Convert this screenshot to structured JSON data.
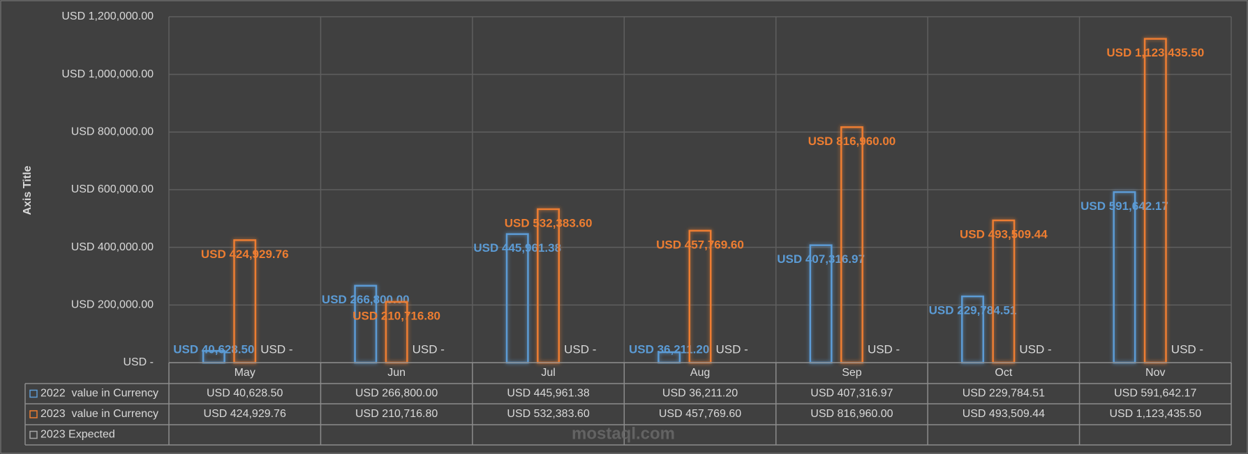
{
  "chart_data": {
    "type": "bar",
    "y_axis_title": "Axis Title",
    "categories": [
      "May",
      "Jun",
      "Jul",
      "Aug",
      "Sep",
      "Oct",
      "Nov"
    ],
    "series": [
      {
        "name": "2022  value in Currency",
        "color": "#5b9bd5",
        "values": [
          40628.5,
          266800.0,
          445961.38,
          36211.2,
          407316.97,
          229784.51,
          591642.17
        ],
        "value_labels": [
          "USD 40,628.50",
          "USD 266,800.00",
          "USD 445,961.38",
          "USD 36,211.20",
          "USD 407,316.97",
          "USD 229,784.51",
          "USD 591,642.17"
        ]
      },
      {
        "name": "2023  value in Currency",
        "color": "#ed7d31",
        "values": [
          424929.76,
          210716.8,
          532383.6,
          457769.6,
          816960.0,
          493509.44,
          1123435.5
        ],
        "value_labels": [
          "USD 424,929.76",
          "USD 210,716.80",
          "USD 532,383.60",
          "USD 457,769.60",
          "USD 816,960.00",
          "USD 493,509.44",
          "USD 1,123,435.50"
        ]
      },
      {
        "name": "2023 Expected",
        "color": "#a5a5a5",
        "values": [
          0,
          0,
          0,
          0,
          0,
          0,
          0
        ],
        "value_labels": [
          "USD -",
          "USD -",
          "USD -",
          "USD -",
          "USD -",
          "USD -",
          "USD -"
        ]
      }
    ],
    "ylim": [
      0,
      1200000
    ],
    "yticks": [
      {
        "value": 0,
        "label": "USD -"
      },
      {
        "value": 200000,
        "label": "USD 200,000.00"
      },
      {
        "value": 400000,
        "label": "USD 400,000.00"
      },
      {
        "value": 600000,
        "label": "USD 600,000.00"
      },
      {
        "value": 800000,
        "label": "USD 800,000.00"
      },
      {
        "value": 1000000,
        "label": "USD 1,000,000.00"
      },
      {
        "value": 1200000,
        "label": "USD 1,200,000.00"
      }
    ],
    "grid": true,
    "data_table": true,
    "watermark": "mostaql.com"
  }
}
